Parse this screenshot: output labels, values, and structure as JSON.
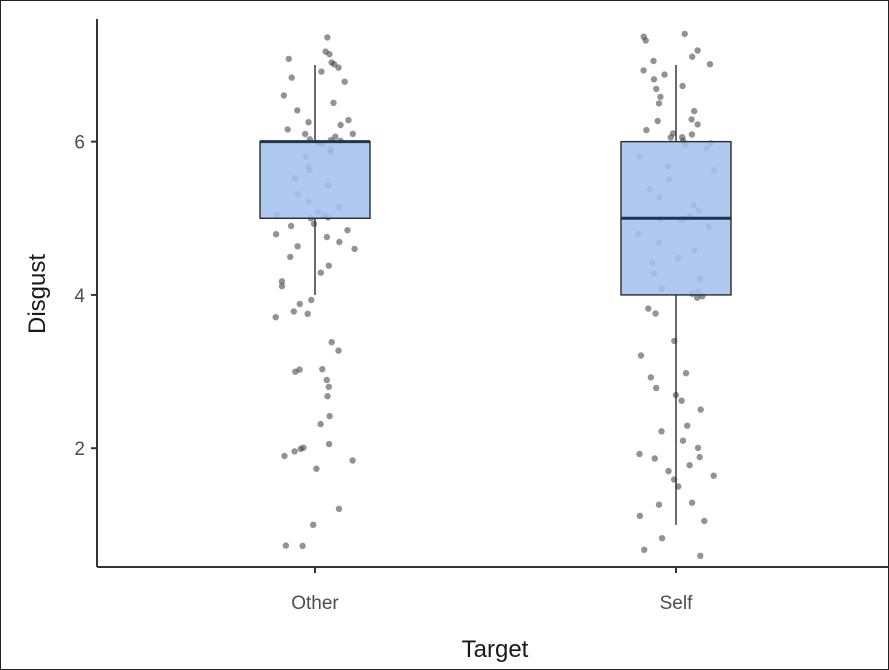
{
  "chart_data": {
    "type": "box",
    "xlabel": "Target",
    "ylabel": "Disgust",
    "ylim": [
      0.45,
      7.6
    ],
    "yticks": [
      2,
      4,
      6
    ],
    "grid": false,
    "legend": "none",
    "colors": {
      "box_fill": "#a4c2ee",
      "box_edge": "#2b2b2b",
      "points": "#3a3a3a",
      "axis": "#333333"
    },
    "categories": [
      "Other",
      "Self"
    ],
    "boxes": [
      {
        "category": "Other",
        "whisker_low": 4.0,
        "q1": 5.0,
        "median": 6.0,
        "q3": 6.0,
        "whisker_high": 7.0
      },
      {
        "category": "Self",
        "whisker_low": 1.0,
        "q1": 4.0,
        "median": 5.0,
        "q3": 6.0,
        "whisker_high": 7.0
      }
    ],
    "points": [
      {
        "category": "Other",
        "values": [
          7.35,
          7.2,
          7.15,
          7.1,
          7.05,
          7.0,
          6.95,
          6.9,
          6.85,
          6.8,
          6.6,
          6.5,
          6.4,
          6.3,
          6.25,
          6.2,
          6.15,
          6.1,
          6.1,
          6.05,
          6.05,
          6.0,
          6.0,
          6.0,
          5.95,
          5.9,
          5.85,
          5.8,
          5.7,
          5.6,
          5.5,
          5.4,
          5.3,
          5.2,
          5.15,
          5.1,
          5.05,
          5.05,
          5.0,
          5.0,
          4.95,
          4.9,
          4.85,
          4.8,
          4.75,
          4.7,
          4.65,
          4.6,
          4.5,
          4.4,
          4.3,
          4.2,
          4.1,
          3.95,
          3.9,
          3.8,
          3.75,
          3.7,
          3.4,
          3.3,
          3.05,
          3.0,
          3.0,
          2.9,
          2.8,
          2.7,
          2.4,
          2.3,
          2.05,
          2.0,
          2.0,
          1.95,
          1.9,
          1.85,
          1.75,
          1.2,
          1.0,
          0.75,
          0.7
        ]
      },
      {
        "category": "Self",
        "values": [
          7.4,
          7.35,
          7.3,
          7.2,
          7.1,
          7.05,
          7.0,
          6.95,
          6.9,
          6.8,
          6.75,
          6.7,
          6.6,
          6.5,
          6.4,
          6.3,
          6.25,
          6.2,
          6.15,
          6.1,
          6.1,
          6.05,
          6.05,
          6.0,
          6.0,
          5.95,
          5.9,
          5.8,
          5.7,
          5.6,
          5.5,
          5.4,
          5.3,
          5.2,
          5.1,
          5.05,
          5.0,
          5.0,
          4.95,
          4.9,
          4.8,
          4.7,
          4.6,
          4.5,
          4.4,
          4.3,
          4.2,
          4.1,
          4.05,
          4.0,
          4.0,
          3.95,
          3.8,
          3.75,
          3.4,
          3.2,
          3.0,
          2.9,
          2.8,
          2.7,
          2.6,
          2.5,
          2.3,
          2.2,
          2.1,
          2.0,
          1.95,
          1.9,
          1.85,
          1.8,
          1.7,
          1.65,
          1.6,
          1.5,
          1.3,
          1.25,
          1.1,
          1.05,
          0.8,
          0.7,
          0.6
        ]
      }
    ]
  }
}
